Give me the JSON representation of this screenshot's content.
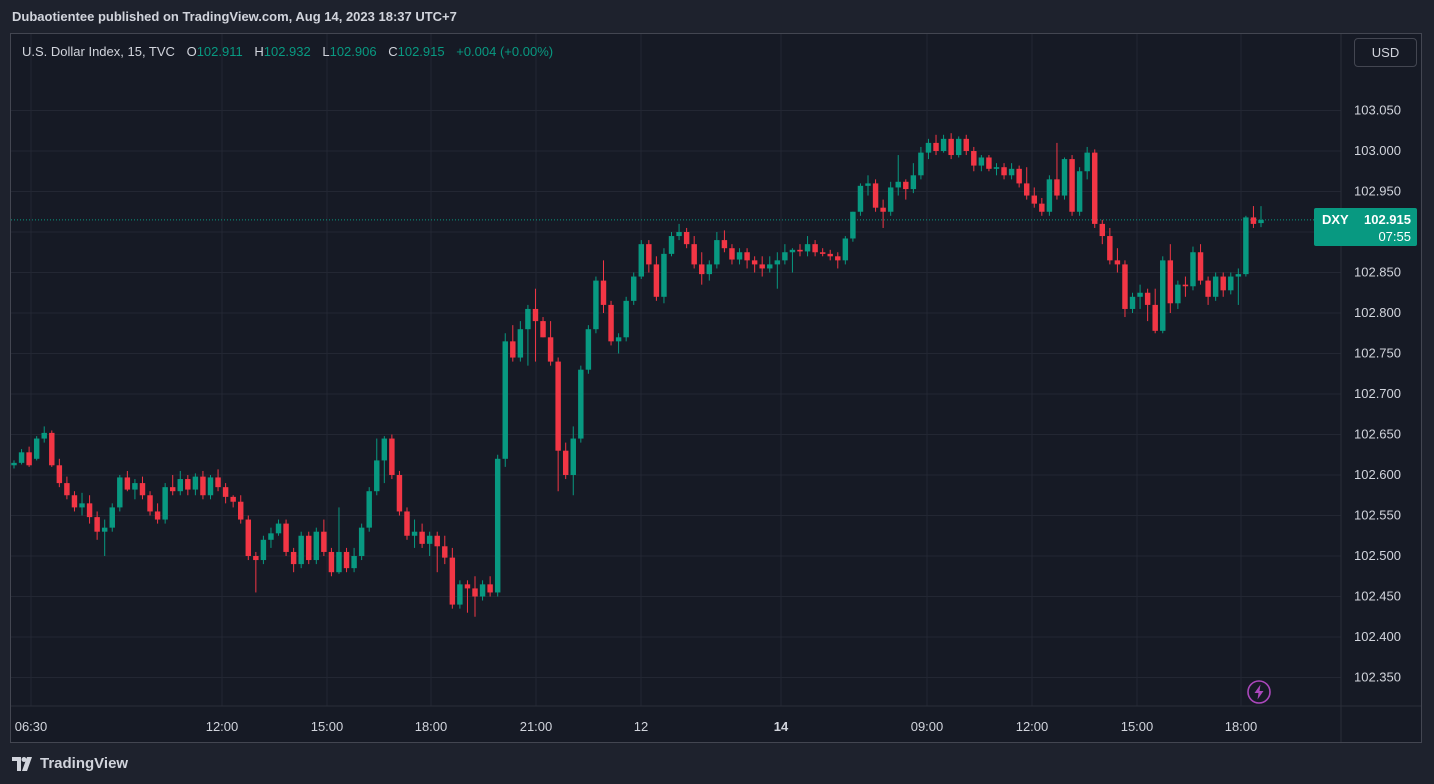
{
  "header": {
    "title": "Dubaotientee published on TradingView.com, Aug 14, 2023 18:37 UTC+7"
  },
  "legend": {
    "symbol": "U.S. Dollar Index, 15, TVC",
    "o_label": "O",
    "o": "102.911",
    "h_label": "H",
    "h": "102.932",
    "l_label": "L",
    "l": "102.906",
    "c_label": "C",
    "c": "102.915",
    "change": "+0.004 (+0.00%)"
  },
  "currency": "USD",
  "price_tag": {
    "symbol": "DXY",
    "price": "102.915",
    "countdown": "07:55"
  },
  "footer": {
    "brand": "TradingView"
  },
  "colors": {
    "up": "#089981",
    "down": "#f23645",
    "background": "#161a25",
    "grid": "#232733",
    "text": "#d1d4dc"
  },
  "chart_data": {
    "type": "candlestick",
    "symbol": "U.S. Dollar Index",
    "interval": "15",
    "y_ticks": [
      "102.350",
      "102.400",
      "102.450",
      "102.500",
      "102.550",
      "102.600",
      "102.650",
      "102.700",
      "102.750",
      "102.800",
      "102.850",
      "102.900",
      "102.950",
      "103.000",
      "103.050"
    ],
    "x_ticks": [
      "06:30",
      "12:00",
      "15:00",
      "18:00",
      "21:00",
      "12",
      "14",
      "09:00",
      "12:00",
      "15:00",
      "18:00"
    ],
    "last_price": 102.915,
    "grid": true,
    "candles": [
      [
        102.612,
        102.618,
        102.608,
        102.615
      ],
      [
        102.615,
        102.632,
        102.613,
        102.628
      ],
      [
        102.628,
        102.635,
        102.61,
        102.612
      ],
      [
        102.62,
        102.648,
        102.618,
        102.645
      ],
      [
        102.645,
        102.66,
        102.64,
        102.652
      ],
      [
        102.652,
        102.655,
        102.61,
        102.612
      ],
      [
        102.612,
        102.62,
        102.585,
        102.59
      ],
      [
        102.59,
        102.598,
        102.57,
        102.575
      ],
      [
        102.575,
        102.58,
        102.555,
        102.56
      ],
      [
        102.56,
        102.578,
        102.55,
        102.565
      ],
      [
        102.565,
        102.575,
        102.54,
        102.548
      ],
      [
        102.548,
        102.555,
        102.52,
        102.53
      ],
      [
        102.53,
        102.545,
        102.5,
        102.535
      ],
      [
        102.535,
        102.565,
        102.53,
        102.56
      ],
      [
        102.56,
        102.6,
        102.555,
        102.597
      ],
      [
        102.597,
        102.605,
        102.58,
        102.582
      ],
      [
        102.582,
        102.595,
        102.57,
        102.59
      ],
      [
        102.59,
        102.598,
        102.57,
        102.575
      ],
      [
        102.575,
        102.58,
        102.55,
        102.555
      ],
      [
        102.555,
        102.565,
        102.54,
        102.545
      ],
      [
        102.545,
        102.59,
        102.54,
        102.585
      ],
      [
        102.585,
        102.6,
        102.575,
        102.58
      ],
      [
        102.58,
        102.605,
        102.575,
        102.595
      ],
      [
        102.595,
        102.6,
        102.575,
        102.582
      ],
      [
        102.582,
        102.602,
        102.575,
        102.598
      ],
      [
        102.598,
        102.605,
        102.57,
        102.575
      ],
      [
        102.575,
        102.6,
        102.57,
        102.597
      ],
      [
        102.597,
        102.607,
        102.58,
        102.585
      ],
      [
        102.585,
        102.59,
        102.565,
        102.573
      ],
      [
        102.573,
        102.575,
        102.56,
        102.567
      ],
      [
        102.567,
        102.575,
        102.54,
        102.545
      ],
      [
        102.545,
        102.55,
        102.495,
        102.5
      ],
      [
        102.5,
        102.505,
        102.455,
        102.495
      ],
      [
        102.495,
        102.525,
        102.49,
        102.52
      ],
      [
        102.52,
        102.535,
        102.51,
        102.528
      ],
      [
        102.528,
        102.545,
        102.525,
        102.54
      ],
      [
        102.54,
        102.545,
        102.5,
        102.505
      ],
      [
        102.505,
        102.51,
        102.48,
        102.49
      ],
      [
        102.49,
        102.53,
        102.485,
        102.525
      ],
      [
        102.525,
        102.53,
        102.49,
        102.495
      ],
      [
        102.495,
        102.535,
        102.49,
        102.53
      ],
      [
        102.53,
        102.545,
        102.5,
        102.505
      ],
      [
        102.505,
        102.51,
        102.475,
        102.48
      ],
      [
        102.48,
        102.56,
        102.478,
        102.505
      ],
      [
        102.505,
        102.51,
        102.48,
        102.485
      ],
      [
        102.485,
        102.51,
        102.48,
        102.5
      ],
      [
        102.5,
        102.54,
        102.495,
        102.535
      ],
      [
        102.535,
        102.585,
        102.53,
        102.58
      ],
      [
        102.58,
        102.645,
        102.575,
        102.618
      ],
      [
        102.618,
        102.648,
        102.59,
        102.645
      ],
      [
        102.645,
        102.65,
        102.595,
        102.6
      ],
      [
        102.6,
        102.605,
        102.55,
        102.555
      ],
      [
        102.555,
        102.56,
        102.52,
        102.525
      ],
      [
        102.525,
        102.545,
        102.51,
        102.53
      ],
      [
        102.53,
        102.54,
        102.51,
        102.515
      ],
      [
        102.515,
        102.53,
        102.5,
        102.525
      ],
      [
        102.525,
        102.53,
        102.48,
        102.512
      ],
      [
        102.512,
        102.525,
        102.49,
        102.498
      ],
      [
        102.498,
        102.51,
        102.435,
        102.44
      ],
      [
        102.44,
        102.47,
        102.435,
        102.465
      ],
      [
        102.465,
        102.47,
        102.43,
        102.46
      ],
      [
        102.46,
        102.475,
        102.425,
        102.45
      ],
      [
        102.45,
        102.47,
        102.445,
        102.465
      ],
      [
        102.465,
        102.475,
        102.45,
        102.455
      ],
      [
        102.455,
        102.625,
        102.45,
        102.62
      ],
      [
        102.62,
        102.775,
        102.61,
        102.765
      ],
      [
        102.765,
        102.785,
        102.74,
        102.745
      ],
      [
        102.745,
        102.79,
        102.74,
        102.78
      ],
      [
        102.78,
        102.81,
        102.735,
        102.805
      ],
      [
        102.805,
        102.83,
        102.74,
        102.79
      ],
      [
        102.79,
        102.795,
        102.77,
        102.77
      ],
      [
        102.77,
        102.79,
        102.735,
        102.74
      ],
      [
        102.74,
        102.745,
        102.58,
        102.63
      ],
      [
        102.63,
        102.64,
        102.595,
        102.6
      ],
      [
        102.6,
        102.66,
        102.575,
        102.645
      ],
      [
        102.645,
        102.735,
        102.64,
        102.73
      ],
      [
        102.73,
        102.785,
        102.725,
        102.78
      ],
      [
        102.78,
        102.845,
        102.775,
        102.84
      ],
      [
        102.84,
        102.865,
        102.8,
        102.81
      ],
      [
        102.81,
        102.815,
        102.76,
        102.765
      ],
      [
        102.765,
        102.775,
        102.75,
        102.77
      ],
      [
        102.77,
        102.82,
        102.765,
        102.815
      ],
      [
        102.815,
        102.85,
        102.81,
        102.845
      ],
      [
        102.845,
        102.89,
        102.842,
        102.885
      ],
      [
        102.885,
        102.89,
        102.85,
        102.86
      ],
      [
        102.86,
        102.87,
        102.815,
        102.82
      ],
      [
        102.82,
        102.88,
        102.812,
        102.873
      ],
      [
        102.873,
        102.9,
        102.87,
        102.895
      ],
      [
        102.895,
        102.91,
        102.89,
        102.9
      ],
      [
        102.9,
        102.905,
        102.88,
        102.885
      ],
      [
        102.885,
        102.895,
        102.855,
        102.86
      ],
      [
        102.86,
        102.875,
        102.835,
        102.848
      ],
      [
        102.848,
        102.865,
        102.84,
        102.86
      ],
      [
        102.86,
        102.9,
        102.855,
        102.89
      ],
      [
        102.89,
        102.902,
        102.875,
        102.88
      ],
      [
        102.88,
        102.885,
        102.86,
        102.866
      ],
      [
        102.866,
        102.88,
        102.86,
        102.875
      ],
      [
        102.875,
        102.88,
        102.855,
        102.865
      ],
      [
        102.865,
        102.87,
        102.85,
        102.86
      ],
      [
        102.86,
        102.87,
        102.845,
        102.855
      ],
      [
        102.855,
        102.87,
        102.85,
        102.86
      ],
      [
        102.86,
        102.875,
        102.83,
        102.865
      ],
      [
        102.865,
        102.885,
        102.86,
        102.875
      ],
      [
        102.875,
        102.88,
        102.85,
        102.878
      ],
      [
        102.878,
        102.885,
        102.87,
        102.876
      ],
      [
        102.876,
        102.895,
        102.87,
        102.885
      ],
      [
        102.885,
        102.89,
        102.87,
        102.875
      ],
      [
        102.875,
        102.88,
        102.87,
        102.873
      ],
      [
        102.873,
        102.878,
        102.865,
        102.87
      ],
      [
        102.87,
        102.875,
        102.855,
        102.865
      ],
      [
        102.865,
        102.895,
        102.86,
        102.892
      ],
      [
        102.892,
        102.925,
        102.888,
        102.925
      ],
      [
        102.925,
        102.96,
        102.92,
        102.957
      ],
      [
        102.957,
        102.97,
        102.945,
        102.96
      ],
      [
        102.96,
        102.965,
        102.925,
        102.93
      ],
      [
        102.93,
        102.94,
        102.905,
        102.925
      ],
      [
        102.925,
        102.962,
        102.92,
        102.955
      ],
      [
        102.955,
        102.995,
        102.945,
        102.962
      ],
      [
        102.962,
        102.965,
        102.94,
        102.953
      ],
      [
        102.953,
        102.985,
        102.948,
        102.97
      ],
      [
        102.97,
        103.005,
        102.965,
        102.998
      ],
      [
        102.998,
        103.015,
        102.99,
        103.01
      ],
      [
        103.01,
        103.02,
        102.995,
        103.0
      ],
      [
        103.0,
        103.02,
        102.998,
        103.015
      ],
      [
        103.015,
        103.022,
        102.99,
        102.995
      ],
      [
        102.995,
        103.018,
        102.992,
        103.015
      ],
      [
        103.015,
        103.02,
        102.995,
        103.0
      ],
      [
        103.0,
        103.005,
        102.975,
        102.982
      ],
      [
        102.982,
        102.995,
        102.975,
        102.992
      ],
      [
        102.992,
        102.995,
        102.975,
        102.978
      ],
      [
        102.978,
        102.985,
        102.97,
        102.98
      ],
      [
        102.98,
        102.985,
        102.965,
        102.97
      ],
      [
        102.97,
        102.985,
        102.965,
        102.978
      ],
      [
        102.978,
        102.982,
        102.955,
        102.96
      ],
      [
        102.96,
        102.98,
        102.94,
        102.945
      ],
      [
        102.945,
        102.955,
        102.93,
        102.935
      ],
      [
        102.935,
        102.942,
        102.92,
        102.925
      ],
      [
        102.925,
        102.97,
        102.92,
        102.965
      ],
      [
        102.965,
        103.01,
        102.94,
        102.945
      ],
      [
        102.945,
        102.992,
        102.94,
        102.99
      ],
      [
        102.99,
        102.995,
        102.92,
        102.925
      ],
      [
        102.925,
        102.98,
        102.92,
        102.975
      ],
      [
        102.975,
        103.005,
        102.965,
        102.998
      ],
      [
        102.998,
        103.002,
        102.905,
        102.91
      ],
      [
        102.91,
        102.915,
        102.885,
        102.895
      ],
      [
        102.895,
        102.905,
        102.86,
        102.865
      ],
      [
        102.865,
        102.88,
        102.85,
        102.86
      ],
      [
        102.86,
        102.865,
        102.795,
        102.805
      ],
      [
        102.805,
        102.825,
        102.8,
        102.82
      ],
      [
        102.82,
        102.835,
        102.805,
        102.825
      ],
      [
        102.825,
        102.83,
        102.79,
        102.81
      ],
      [
        102.81,
        102.83,
        102.775,
        102.778
      ],
      [
        102.778,
        102.87,
        102.775,
        102.865
      ],
      [
        102.865,
        102.885,
        102.8,
        102.812
      ],
      [
        102.812,
        102.84,
        102.805,
        102.835
      ],
      [
        102.835,
        102.845,
        102.82,
        102.833
      ],
      [
        102.833,
        102.882,
        102.828,
        102.875
      ],
      [
        102.875,
        102.885,
        102.835,
        102.84
      ],
      [
        102.84,
        102.845,
        102.81,
        102.82
      ],
      [
        102.82,
        102.85,
        102.815,
        102.845
      ],
      [
        102.845,
        102.85,
        102.82,
        102.828
      ],
      [
        102.828,
        102.85,
        102.823,
        102.845
      ],
      [
        102.845,
        102.855,
        102.81,
        102.848
      ],
      [
        102.848,
        102.92,
        102.845,
        102.918
      ],
      [
        102.918,
        102.932,
        102.905,
        102.91
      ],
      [
        102.911,
        102.932,
        102.906,
        102.915
      ]
    ]
  }
}
